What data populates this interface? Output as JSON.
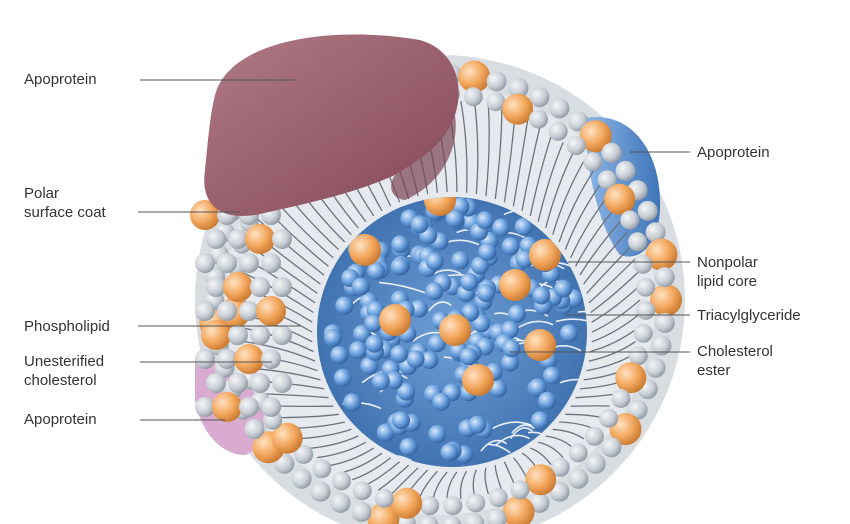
{
  "figure": {
    "colors": {
      "apoprotein_red": "#9a5a68",
      "apoprotein_blue": "#4f86c6",
      "apoprotein_pink": "#d8a8cc",
      "phospholipid_head": "#c9cfd6",
      "unesterified_cholesterol": "#f0a55c",
      "core_background": "#4a7fc0",
      "core_lipid": "#6aa0dc",
      "cholesterol_ester": "#f0a55c",
      "leader_line": "#555555"
    }
  },
  "labels": {
    "apoprotein_top": "Apoprotein",
    "polar_line1": "Polar",
    "polar_line2": "surface coat",
    "phospholipid": "Phospholipid",
    "unesterified_line1": "Unesterified",
    "unesterified_line2": "cholesterol",
    "apoprotein_bottom": "Apoprotein",
    "apoprotein_right": "Apoprotein",
    "nonpolar_line1": "Nonpolar",
    "nonpolar_line2": "lipid core",
    "triacylglyceride": "Triacylglyceride",
    "cholesterol_ester_line1": "Cholesterol",
    "cholesterol_ester_line2": "ester"
  }
}
